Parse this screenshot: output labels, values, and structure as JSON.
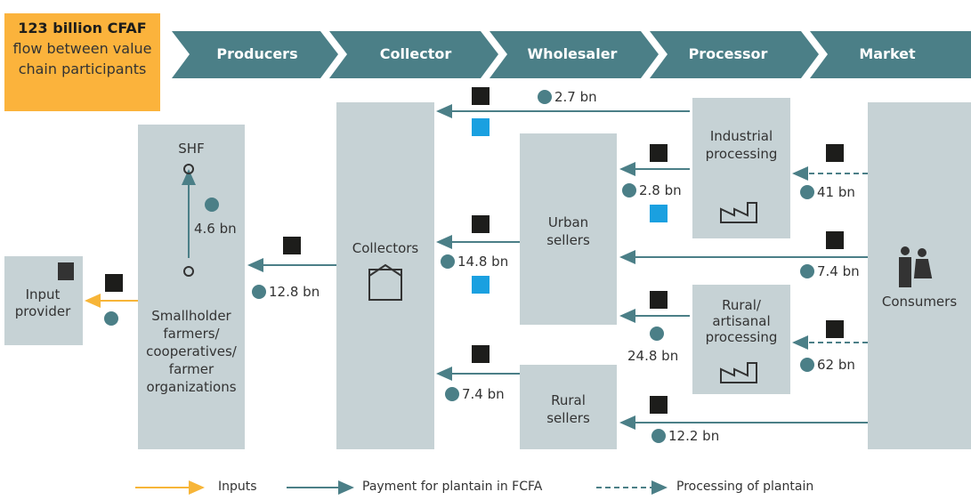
{
  "header": {
    "title": "123 billion CFAF",
    "subtitle": "flow between value chain participants"
  },
  "stages": [
    "Producers",
    "Collector",
    "Wholesaler",
    "Processor",
    "Market"
  ],
  "nodes": [
    {
      "label": "Input provider"
    },
    {
      "label": "SHF"
    },
    {
      "label": "Smallholder farmers/ cooperatives/ farmer organizations"
    },
    {
      "label": "Collectors"
    },
    {
      "label": "Urban sellers"
    },
    {
      "label": "Rural sellers"
    },
    {
      "label": "Industrial processing"
    },
    {
      "label": "Rural/ artisanal processing"
    },
    {
      "label": "Consumers"
    }
  ],
  "flows": [
    {
      "label": "2.7 bn"
    },
    {
      "label": "2.8 bn"
    },
    {
      "label": "41 bn"
    },
    {
      "label": "14.8 bn"
    },
    {
      "label": "7.4 bn"
    },
    {
      "label": "12.8 bn"
    },
    {
      "label": "4.6 bn"
    },
    {
      "label": "24.8 bn"
    },
    {
      "label": "62 bn"
    },
    {
      "label": "7.4 bn"
    },
    {
      "label": "12.2 bn"
    }
  ],
  "legend": [
    "Inputs",
    "Payment for plantain in FCFA",
    "Processing of plantain"
  ]
}
